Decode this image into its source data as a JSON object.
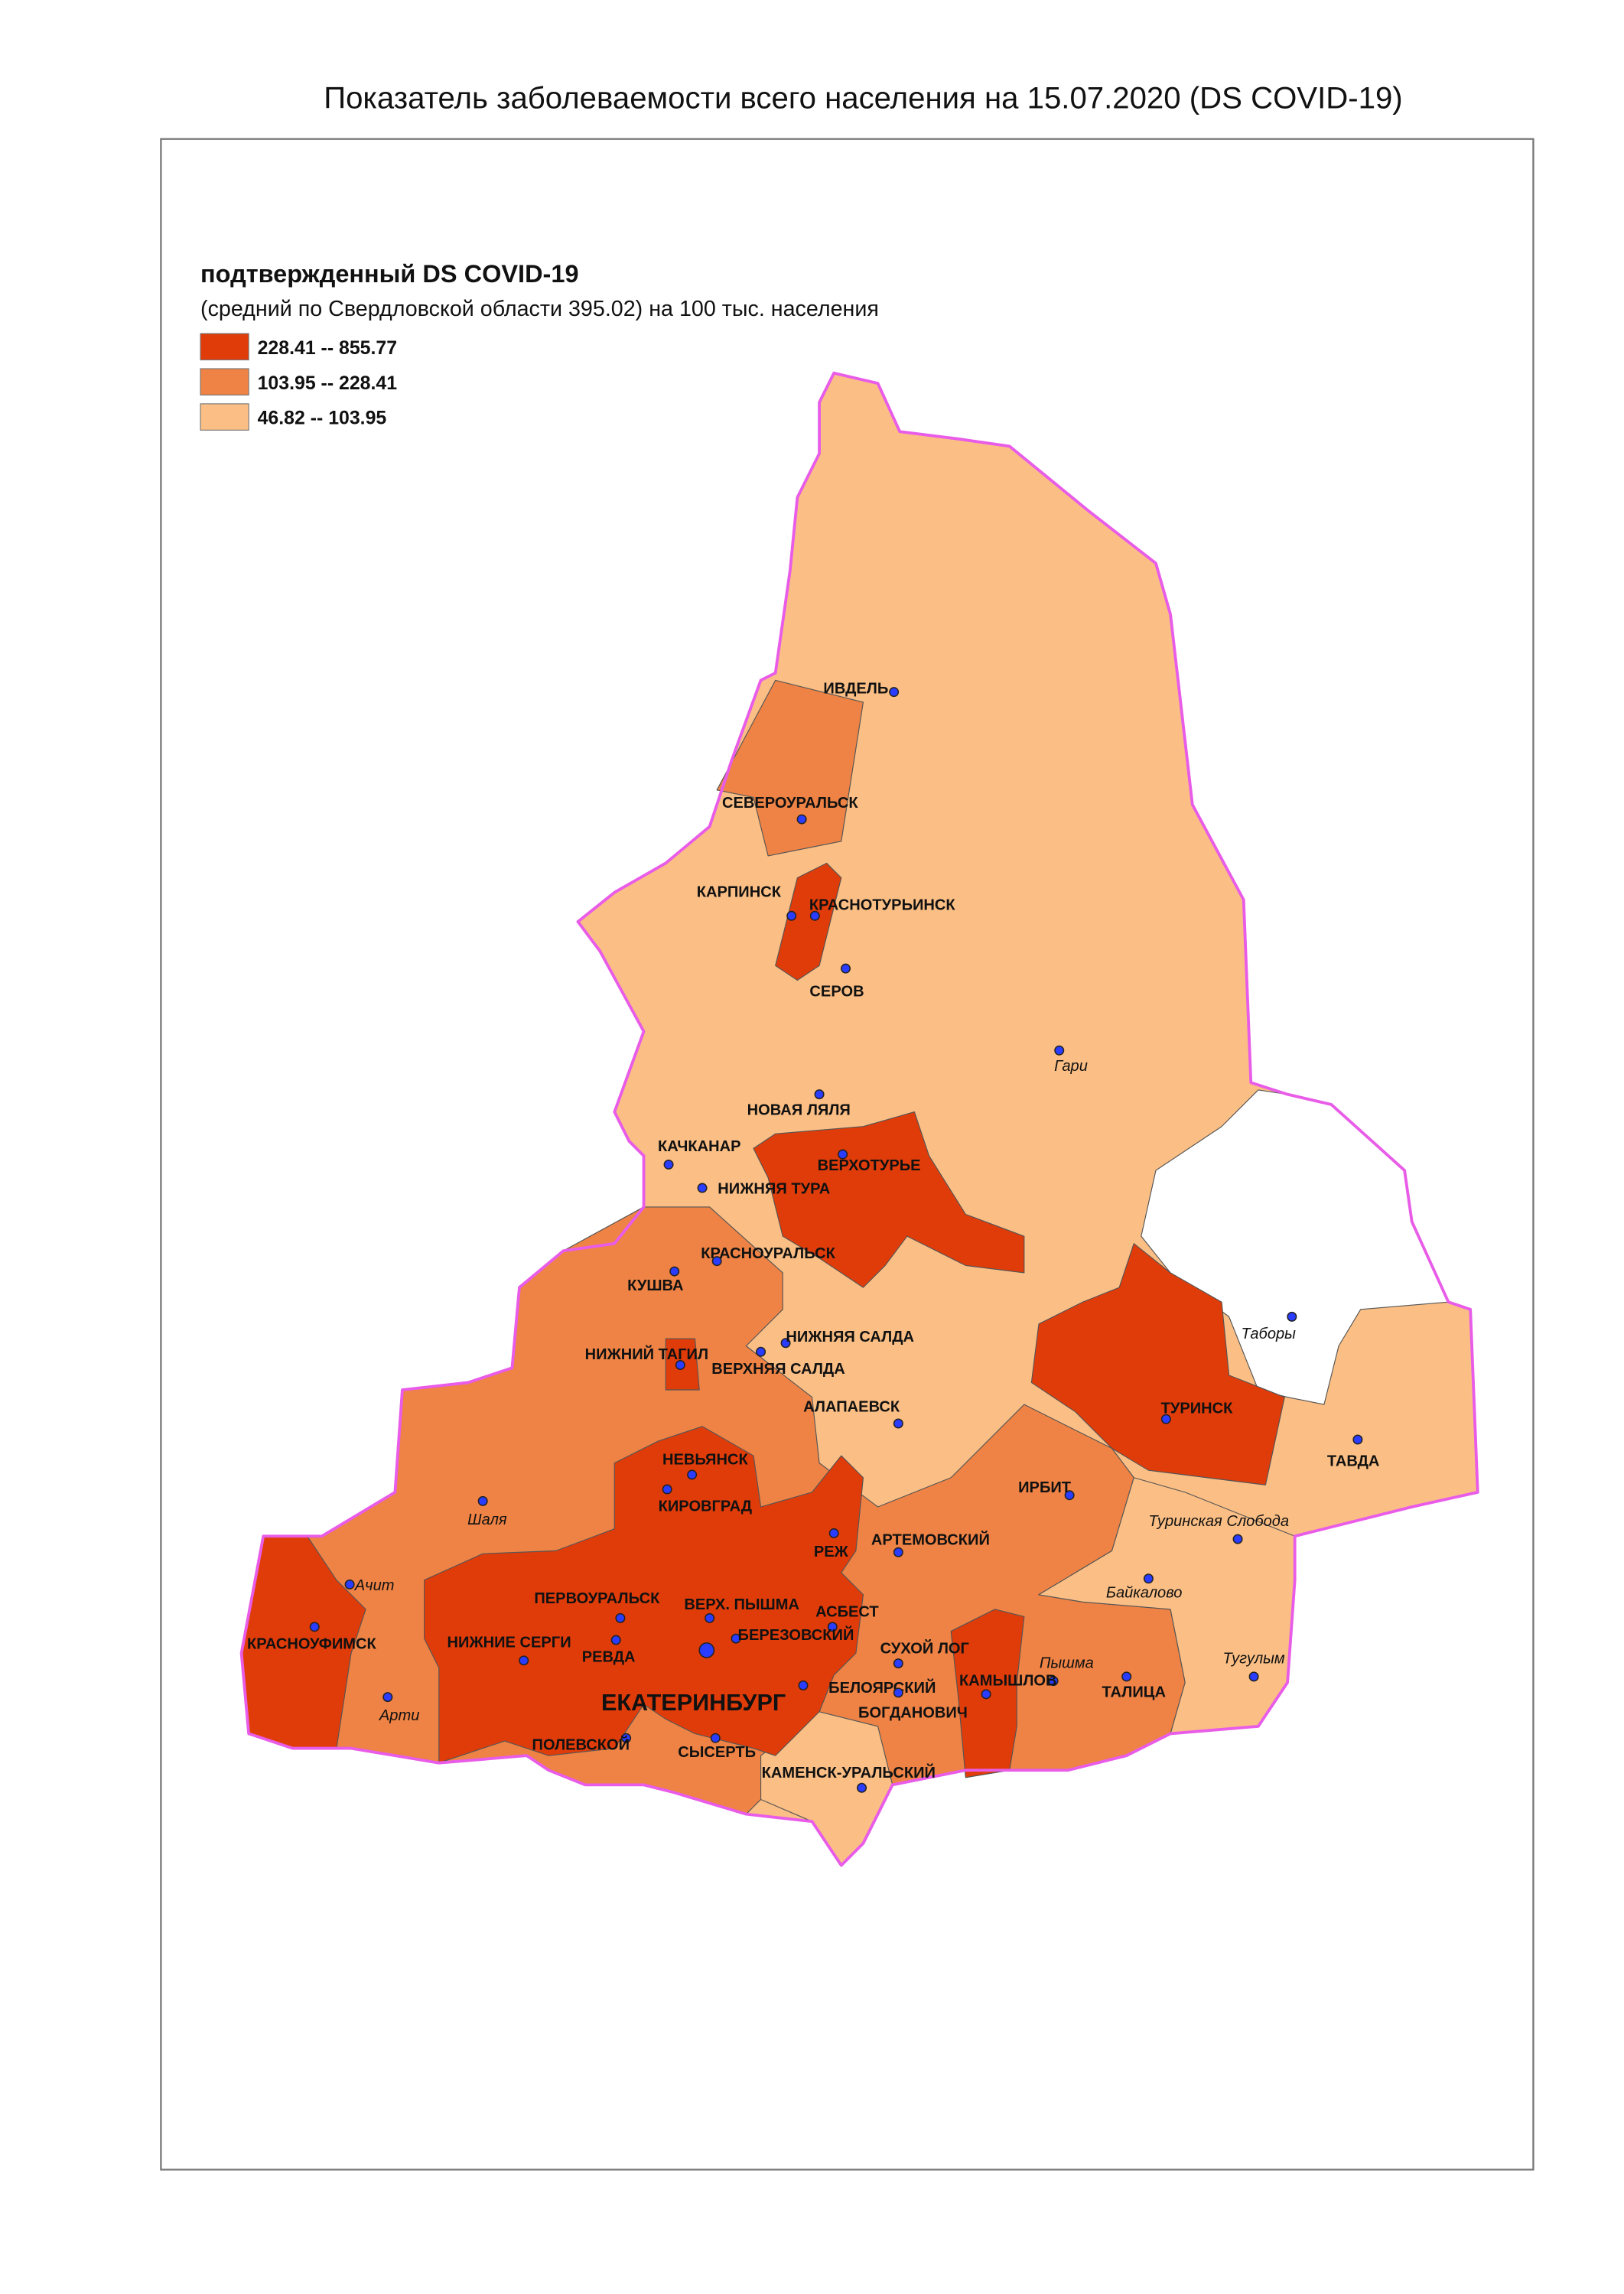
{
  "title": "Показатель заболеваемости всего населения  на 15.07.2020 (DS  COVID-19)",
  "legend": {
    "title": "подтвержденный DS  COVID-19",
    "subtitle": "(средний по Свердловской области 395.02) на 100 тыс. населения",
    "items": [
      {
        "label": "228.41 -- 855.77",
        "color": "#e03c0a"
      },
      {
        "label": "103.95 -- 228.41",
        "color": "#ee8345"
      },
      {
        "label": "46.82 -- 103.95",
        "color": "#fbbf85"
      }
    ]
  },
  "places": [
    {
      "name": "ИВДЕЛЬ"
    },
    {
      "name": "СЕВЕРОУРАЛЬСК"
    },
    {
      "name": "КАРПИНСК"
    },
    {
      "name": "КРАСНОТУРЬИНСК"
    },
    {
      "name": "СЕРОВ"
    },
    {
      "name": "Гари"
    },
    {
      "name": "НОВАЯ ЛЯЛЯ"
    },
    {
      "name": "КАЧКАНАР"
    },
    {
      "name": "ВЕРХОТУРЬЕ"
    },
    {
      "name": "НИЖНЯЯ ТУРА"
    },
    {
      "name": "КРАСНОУРАЛЬСК"
    },
    {
      "name": "КУШВА"
    },
    {
      "name": "НИЖНИЙ ТАГИЛ"
    },
    {
      "name": "НИЖНЯЯ САЛДА"
    },
    {
      "name": "ВЕРХНЯЯ САЛДА"
    },
    {
      "name": "Таборы"
    },
    {
      "name": "АЛАПАЕВСК"
    },
    {
      "name": "ТУРИНСК"
    },
    {
      "name": "ТАВДА"
    },
    {
      "name": "НЕВЬЯНСК"
    },
    {
      "name": "ИРБИТ"
    },
    {
      "name": "КИРОВГРАД"
    },
    {
      "name": "Шаля"
    },
    {
      "name": "Туринская Слобода"
    },
    {
      "name": "РЕЖ"
    },
    {
      "name": "АРТЕМОВСКИЙ"
    },
    {
      "name": "Ачит"
    },
    {
      "name": "Байкалово"
    },
    {
      "name": "ПЕРВОУРАЛЬСК"
    },
    {
      "name": "ВЕРХ. ПЫШМА"
    },
    {
      "name": "АСБЕСТ"
    },
    {
      "name": "КРАСНОУФИМСК"
    },
    {
      "name": "НИЖНИЕ СЕРГИ"
    },
    {
      "name": "БЕРЕЗОВСКИЙ"
    },
    {
      "name": "СУХОЙ ЛОГ"
    },
    {
      "name": "РЕВДА"
    },
    {
      "name": "Пышма"
    },
    {
      "name": "ТАЛИЦА"
    },
    {
      "name": "Тугулым"
    },
    {
      "name": "КАМЫШЛОВ"
    },
    {
      "name": "БЕЛОЯРСКИЙ"
    },
    {
      "name": "ЕКАТЕРИНБУРГ"
    },
    {
      "name": "Арти"
    },
    {
      "name": "БОГДАНОВИЧ"
    },
    {
      "name": "ПОЛЕВСКОЙ"
    },
    {
      "name": "СЫСЕРТЬ"
    },
    {
      "name": "КАМЕНСК-УРАЛЬСКИЙ"
    }
  ]
}
